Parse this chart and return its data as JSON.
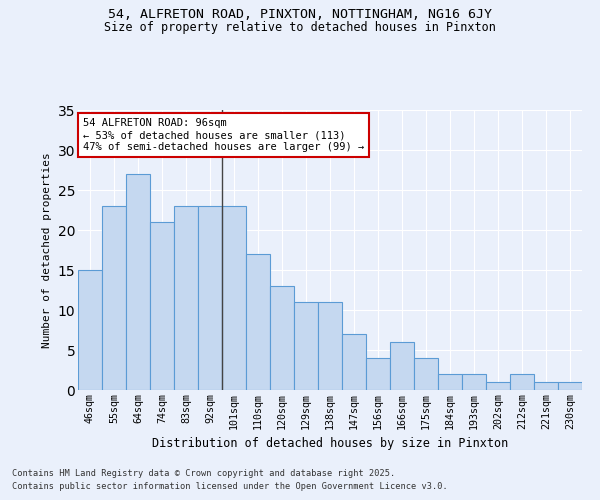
{
  "title1": "54, ALFRETON ROAD, PINXTON, NOTTINGHAM, NG16 6JY",
  "title2": "Size of property relative to detached houses in Pinxton",
  "xlabel": "Distribution of detached houses by size in Pinxton",
  "ylabel": "Number of detached properties",
  "categories": [
    "46sqm",
    "55sqm",
    "64sqm",
    "74sqm",
    "83sqm",
    "92sqm",
    "101sqm",
    "110sqm",
    "120sqm",
    "129sqm",
    "138sqm",
    "147sqm",
    "156sqm",
    "166sqm",
    "175sqm",
    "184sqm",
    "193sqm",
    "202sqm",
    "212sqm",
    "221sqm",
    "230sqm"
  ],
  "values": [
    15,
    23,
    27,
    21,
    23,
    23,
    23,
    17,
    13,
    11,
    11,
    7,
    4,
    6,
    4,
    2,
    2,
    1,
    2,
    1,
    1
  ],
  "bar_color": "#c5d8f0",
  "bar_edge_color": "#5b9bd5",
  "annotation_title": "54 ALFRETON ROAD: 96sqm",
  "annotation_line1": "← 53% of detached houses are smaller (113)",
  "annotation_line2": "47% of semi-detached houses are larger (99) →",
  "annotation_box_color": "#ffffff",
  "annotation_border_color": "#cc0000",
  "vline_x": 5.5,
  "ylim": [
    0,
    35
  ],
  "yticks": [
    0,
    5,
    10,
    15,
    20,
    25,
    30,
    35
  ],
  "bg_color": "#eaf0fb",
  "grid_color": "#ffffff",
  "footer1": "Contains HM Land Registry data © Crown copyright and database right 2025.",
  "footer2": "Contains public sector information licensed under the Open Government Licence v3.0."
}
